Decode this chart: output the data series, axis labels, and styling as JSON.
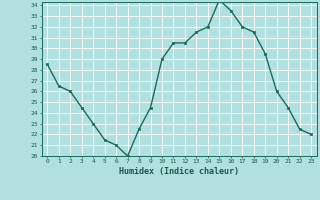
{
  "xlabel": "Humidex (Indice chaleur)",
  "x": [
    0,
    1,
    2,
    3,
    4,
    5,
    6,
    7,
    8,
    9,
    10,
    11,
    12,
    13,
    14,
    15,
    16,
    17,
    18,
    19,
    20,
    21,
    22,
    23
  ],
  "y": [
    28.5,
    26.5,
    26.0,
    24.5,
    23.0,
    21.5,
    21.0,
    20.0,
    22.5,
    24.5,
    29.0,
    30.5,
    30.5,
    31.5,
    32.0,
    34.5,
    33.5,
    32.0,
    31.5,
    29.5,
    26.0,
    24.5,
    22.5,
    22.0
  ],
  "ylim": [
    20,
    34
  ],
  "yticks": [
    20,
    21,
    22,
    23,
    24,
    25,
    26,
    27,
    28,
    29,
    30,
    31,
    32,
    33,
    34
  ],
  "xticks": [
    0,
    1,
    2,
    3,
    4,
    5,
    6,
    7,
    8,
    9,
    10,
    11,
    12,
    13,
    14,
    15,
    16,
    17,
    18,
    19,
    20,
    21,
    22,
    23
  ],
  "line_color": "#1a6b5a",
  "marker_color": "#1a6b5a",
  "bg_color": "#b2e0e0",
  "grid_color": "#ffffff",
  "tick_label_color": "#1a5a4a",
  "xlabel_color": "#1a5a4a",
  "border_color": "#1a6b5a"
}
